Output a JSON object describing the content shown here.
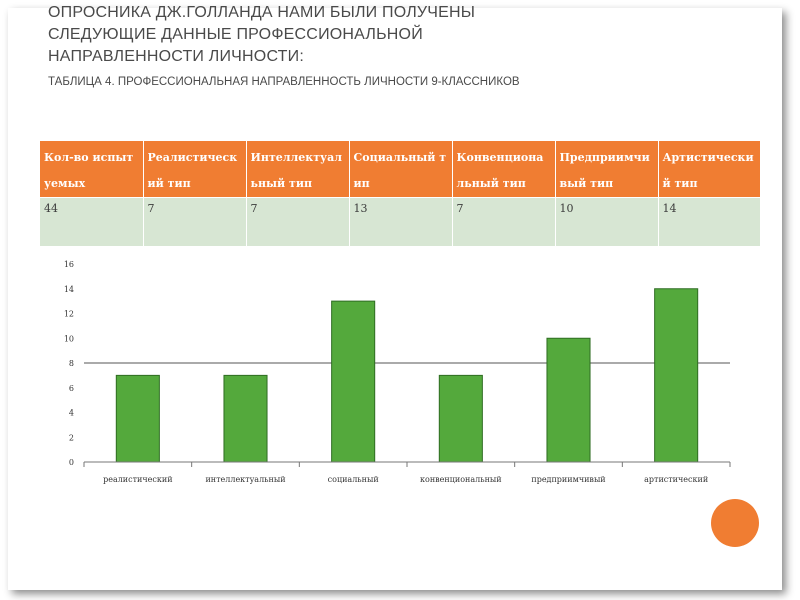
{
  "heading": {
    "lines": [
      "ОПРОСНИКА ДЖ.ГОЛЛАНДА НАМИ БЫЛИ ПОЛУЧЕНЫ",
      "СЛЕДУЮЩИЕ ДАННЫЕ ПРОФЕССИОНАЛЬНОЙ",
      "НАПРАВЛЕННОСТИ ЛИЧНОСТИ:"
    ],
    "caption": "ТАБЛИЦА 4. ПРОФЕССИОНАЛЬНАЯ НАПРАВЛЕННОСТЬ ЛИЧНОСТИ 9-КЛАССНИКОВ"
  },
  "table": {
    "headers": [
      "Кол-во испытуемых",
      "Реалистический тип",
      "Интеллектуальный тип",
      "Социальный тип",
      "Конвенциональный тип",
      "Предприимчивый тип",
      "Артистический тип"
    ],
    "row": [
      "44",
      "7",
      "7",
      "13",
      "7",
      "10",
      "14"
    ]
  },
  "colors": {
    "header_bg": "#f07d32",
    "row_bg": "#d7e6d3",
    "bar": "#54a93c",
    "accent_circle": "#f07d32"
  },
  "chart_data": {
    "type": "bar",
    "categories": [
      "реалистический",
      "интеллектуальный",
      "социальный",
      "конвенциональный",
      "предприимчивый",
      "артистический"
    ],
    "values": [
      7,
      7,
      13,
      7,
      10,
      14
    ],
    "yticks": [
      "0",
      "2",
      "4",
      "6",
      "8",
      "10",
      "12",
      "14",
      "16"
    ],
    "ylim": [
      0,
      16
    ],
    "reference_line": 8,
    "grid": false,
    "legend": "none"
  }
}
